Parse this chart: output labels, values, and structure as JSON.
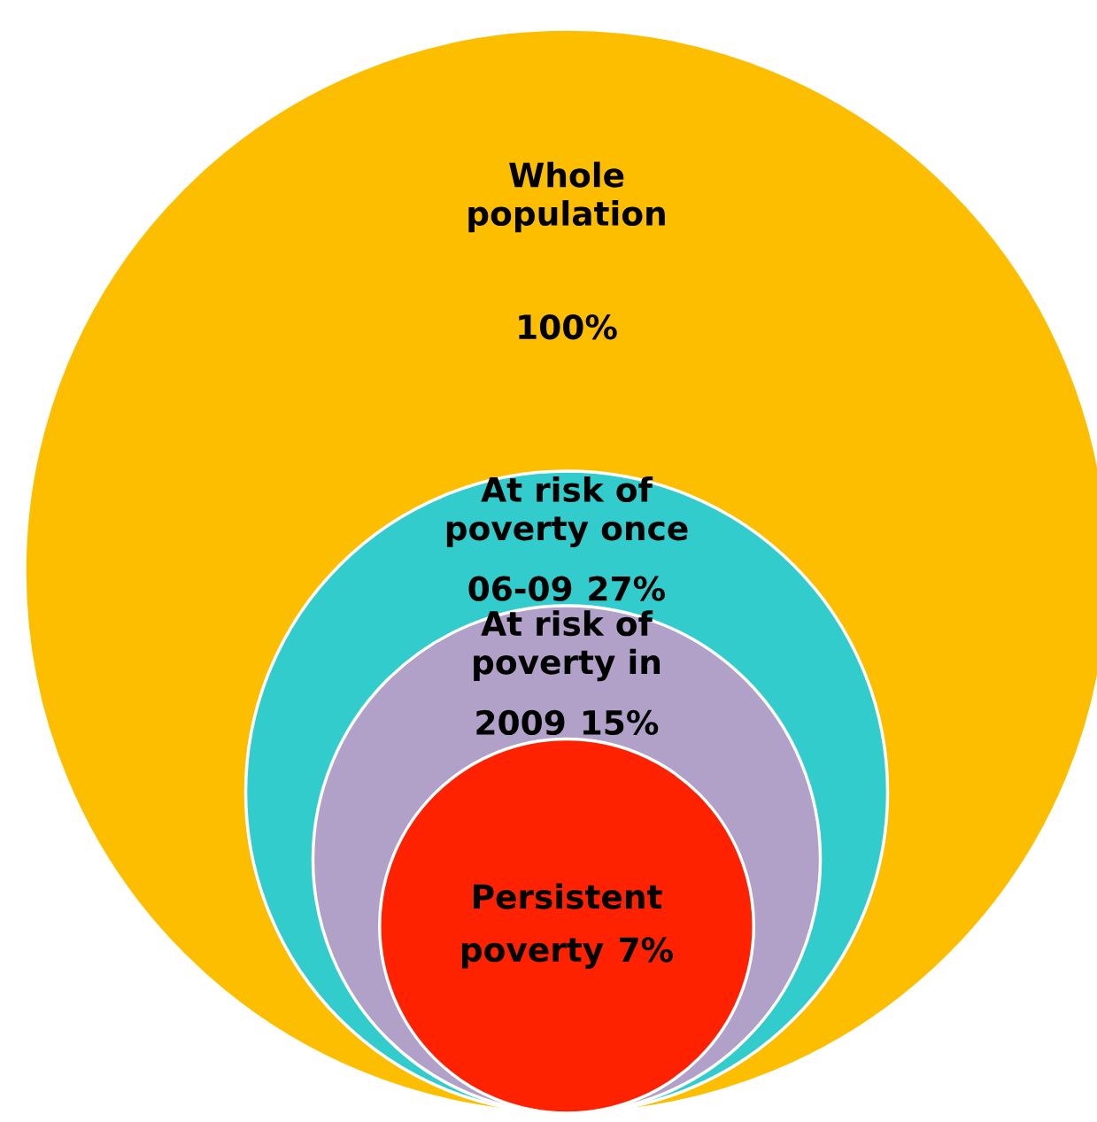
{
  "chart_data": {
    "type": "other",
    "categories": [
      "Whole\npopulation",
      "At risk of\npoverty once\n06-09",
      "At risk of\npoverty in\n2009",
      "Persistent\npoverty"
    ],
    "values": [
      100,
      27,
      15,
      7
    ],
    "value_labels": [
      "100%",
      "27%",
      "15%",
      "7%"
    ],
    "colors": [
      "#fdbe00",
      "#33cccc",
      "#b1a0c7",
      "#ff2200"
    ]
  }
}
